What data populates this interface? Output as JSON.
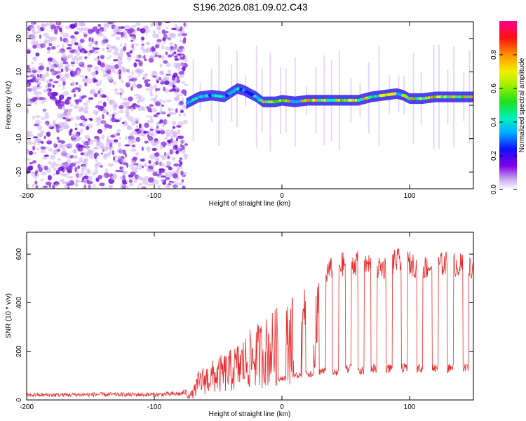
{
  "title": "S196.2026.081.09.02.C43",
  "chart_data": [
    {
      "type": "heatmap",
      "name": "spectrogram",
      "xlabel": "Height of straight line (km)",
      "ylabel": "Frequency (Hz)",
      "xlim": [
        -200,
        150
      ],
      "ylim": [
        -25,
        25
      ],
      "xticks": [
        -200,
        -100,
        0,
        100
      ],
      "yticks": [
        -20,
        -10,
        0,
        10,
        20
      ],
      "ridge": {
        "x": [
          -75,
          -65,
          -55,
          -45,
          -35,
          -30,
          -25,
          -20,
          -15,
          -10,
          -5,
          0,
          10,
          20,
          30,
          40,
          50,
          60,
          70,
          80,
          90,
          95,
          100,
          110,
          120,
          130,
          140,
          150
        ],
        "y": [
          0.5,
          2.5,
          3,
          2.5,
          5,
          4.5,
          3.5,
          2.5,
          1,
          1,
          1,
          1.5,
          1,
          1.5,
          1.5,
          1.5,
          1.5,
          1.5,
          2.5,
          3,
          3.5,
          3,
          2,
          2,
          2.5,
          2.5,
          2.5,
          2.5
        ]
      },
      "noise_region_xlim": [
        -200,
        -75
      ],
      "colorbar": {
        "label": "Normalized spectral amplitude",
        "range": [
          0,
          1
        ],
        "ticks": [
          "0.0",
          "0.2",
          "0.4",
          "0.6",
          "0.8"
        ],
        "tick_values": [
          0,
          0.2,
          0.4,
          0.6,
          0.8
        ]
      }
    },
    {
      "type": "line",
      "name": "snr",
      "xlabel": "Height of straight line (km)",
      "ylabel": "SNR (10 * v/v)",
      "xlim": [
        -200,
        150
      ],
      "ylim": [
        0,
        690
      ],
      "xticks": [
        -200,
        -100,
        0,
        100
      ],
      "yticks": [
        0,
        200,
        400,
        600
      ],
      "color": "#e8292b",
      "series": [
        {
          "name": "SNR",
          "envelope_x": [
            -200,
            -150,
            -100,
            -80,
            -70,
            -65,
            -60,
            -50,
            -40,
            -30,
            -20,
            -10,
            0,
            10,
            20,
            30,
            40,
            50,
            60,
            70,
            80,
            90,
            100,
            110,
            120,
            130,
            140,
            150
          ],
          "envelope_y": [
            20,
            22,
            22,
            25,
            40,
            120,
            140,
            170,
            200,
            250,
            300,
            340,
            380,
            420,
            470,
            520,
            560,
            580,
            580,
            570,
            560,
            590,
            580,
            560,
            570,
            580,
            570,
            560
          ],
          "dropouts": [
            {
              "x": 0,
              "y": 90
            },
            {
              "x": 12,
              "y": 100
            },
            {
              "x": 22,
              "y": 110
            },
            {
              "x": 32,
              "y": 120
            },
            {
              "x": 42,
              "y": 110
            },
            {
              "x": 52,
              "y": 130
            },
            {
              "x": 62,
              "y": 120
            },
            {
              "x": 72,
              "y": 130
            },
            {
              "x": 84,
              "y": 130
            },
            {
              "x": 96,
              "y": 130
            },
            {
              "x": 108,
              "y": 130
            },
            {
              "x": 120,
              "y": 130
            },
            {
              "x": 132,
              "y": 130
            },
            {
              "x": 144,
              "y": 130
            }
          ]
        }
      ]
    }
  ]
}
